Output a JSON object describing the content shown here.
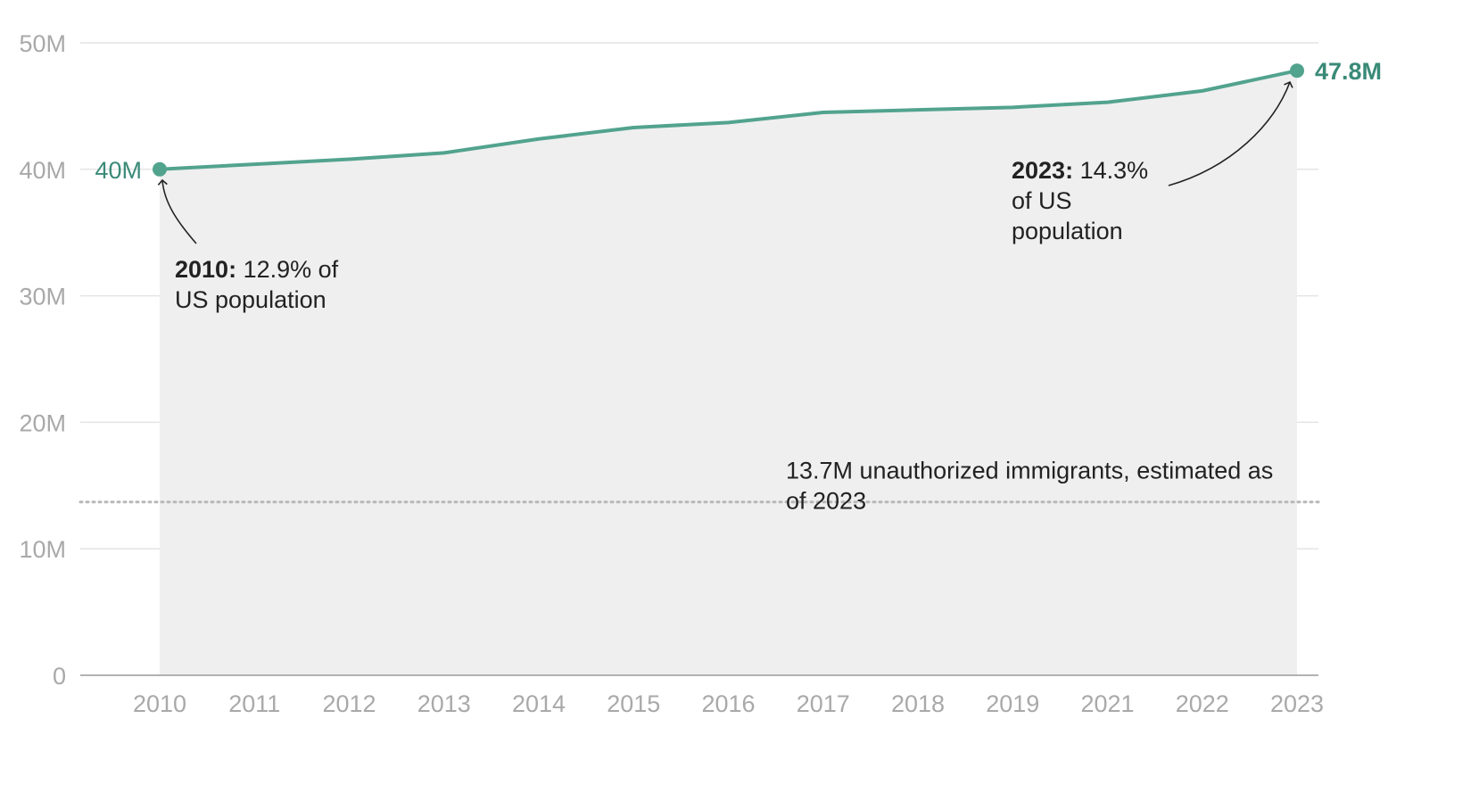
{
  "chart_data": {
    "type": "line",
    "x": [
      "2010",
      "2011",
      "2012",
      "2013",
      "2014",
      "2015",
      "2016",
      "2017",
      "2018",
      "2019",
      "2021",
      "2022",
      "2023"
    ],
    "series": [
      {
        "values": [
          40.0,
          40.4,
          40.8,
          41.3,
          42.4,
          43.3,
          43.7,
          44.5,
          44.7,
          44.9,
          45.3,
          46.2,
          47.8
        ]
      }
    ],
    "ylim": [
      0,
      50
    ],
    "yticks": [
      0,
      10,
      20,
      30,
      40,
      50
    ],
    "ytick_labels": [
      "0",
      "10M",
      "20M",
      "30M",
      "40M",
      "50M"
    ],
    "grid": true,
    "area_fill": true,
    "start_label": "40M",
    "end_label": "47.8M",
    "reference_line": {
      "value": 13.7,
      "label": "13.7M unauthorized immigrants, estimated as of 2023",
      "label_lines": [
        "13.7M unauthorized immigrants, estimated as",
        "of 2023"
      ]
    },
    "annotations": [
      {
        "bold": "2010:",
        "lines": [
          " 12.9% of",
          "US population"
        ]
      },
      {
        "bold": "2023:",
        "lines": [
          " 14.3%",
          "of US",
          "population"
        ]
      }
    ],
    "colors": {
      "line": "#52a38e",
      "label": "#3a8a78",
      "area": "#efefef",
      "grid": "#e4e4e4",
      "axis": "#9a9a9a",
      "tick_text": "#a9a9a9",
      "reference": "#b8b8b8",
      "annotation_text": "#222222"
    }
  }
}
